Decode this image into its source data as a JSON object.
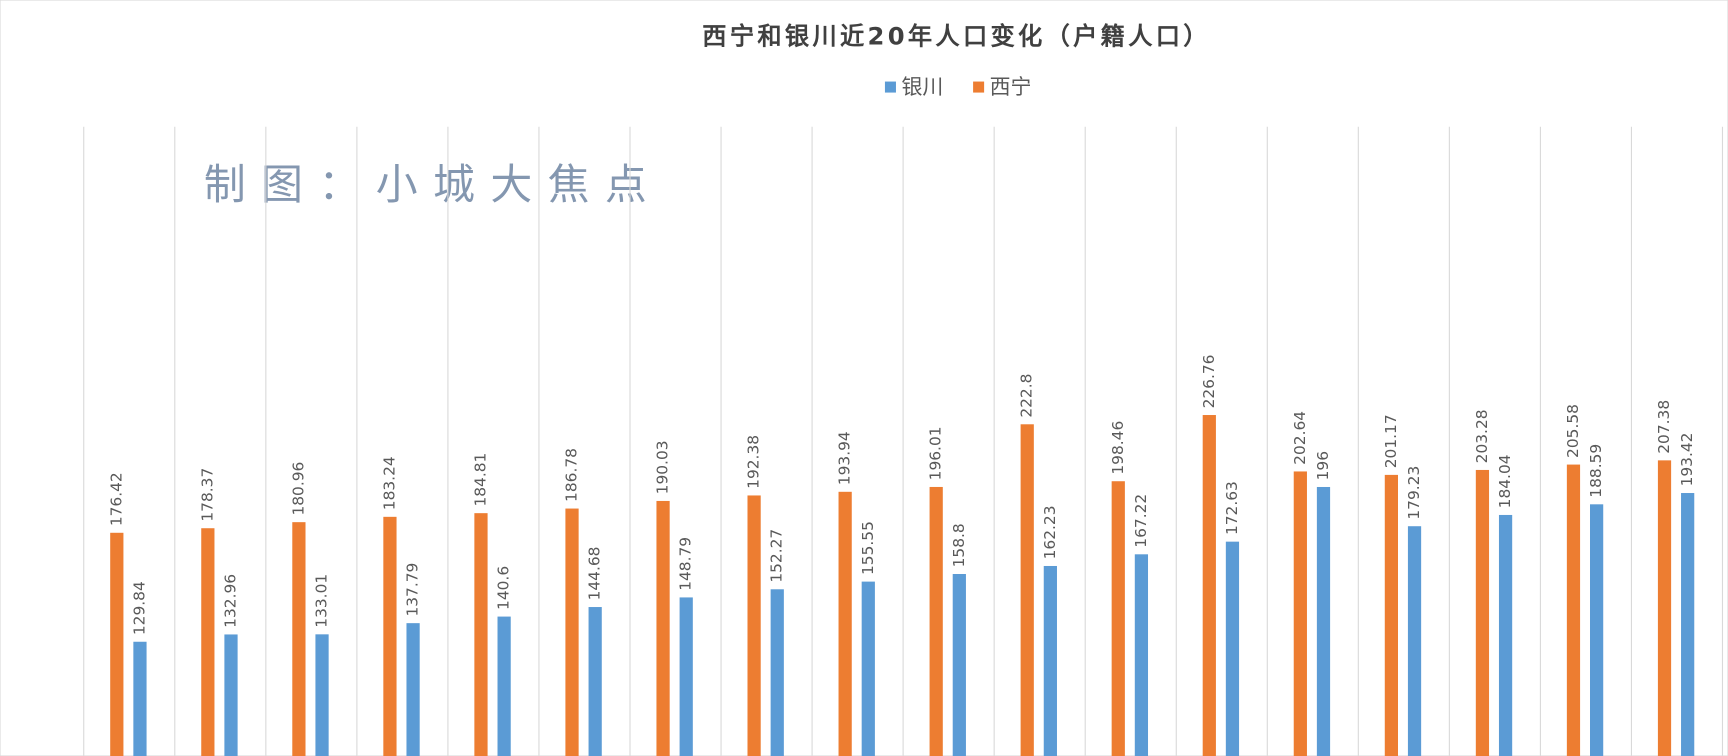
{
  "chart_data": {
    "type": "bar",
    "title": "西宁和银川近20年人口变化（户籍人口）",
    "annotation": "制图：小城大焦点",
    "categories": [
      null,
      null,
      null,
      null,
      null,
      null,
      null,
      null,
      null,
      null,
      null,
      null,
      null,
      null,
      null,
      null,
      null,
      null
    ],
    "series": [
      {
        "name": "银川",
        "color": "#5b9bd5",
        "values": [
          129.84,
          132.96,
          133.01,
          137.79,
          140.6,
          144.68,
          148.79,
          152.27,
          155.55,
          158.8,
          162.23,
          167.22,
          172.63,
          196,
          179.23,
          184.04,
          188.59,
          193.42
        ]
      },
      {
        "name": "西宁",
        "color": "#ed7d31",
        "values": [
          176.42,
          178.37,
          180.96,
          183.24,
          184.81,
          186.78,
          190.03,
          192.38,
          193.94,
          196.01,
          222.8,
          198.46,
          226.76,
          202.64,
          201.17,
          203.28,
          205.58,
          207.38
        ]
      }
    ],
    "ylim": [
      81,
      350
    ],
    "legend": "top"
  }
}
